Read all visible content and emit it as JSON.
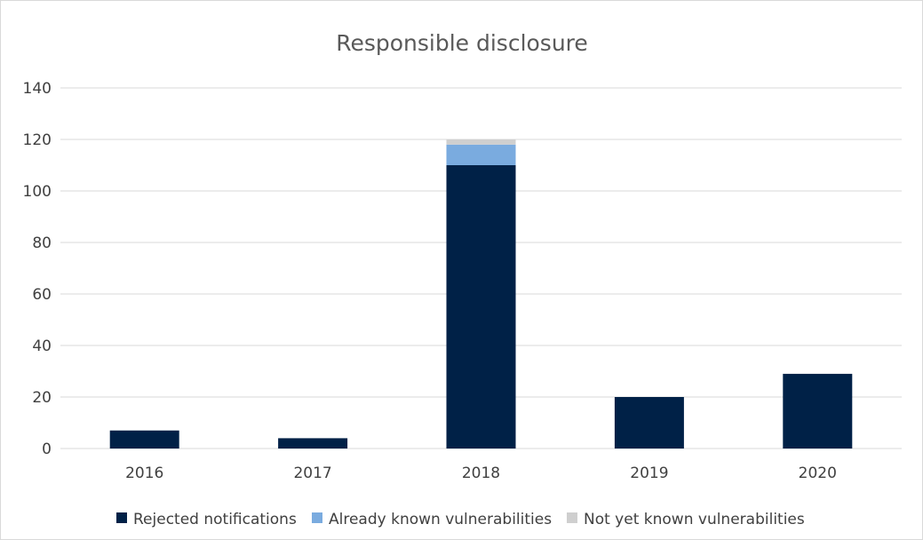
{
  "chart_data": {
    "type": "bar",
    "stacked": true,
    "title": "Responsible disclosure",
    "xlabel": "",
    "ylabel": "",
    "ylim": [
      0,
      140
    ],
    "yticks": [
      "0",
      "20",
      "40",
      "60",
      "80",
      "100",
      "120",
      "140"
    ],
    "categories": [
      "2016",
      "2017",
      "2018",
      "2019",
      "2020"
    ],
    "series": [
      {
        "name": "Rejected notifications",
        "color": "#002147",
        "values": [
          7,
          4,
          110,
          20,
          29
        ]
      },
      {
        "name": "Already known vulnerabilities",
        "color": "#7aabdf",
        "values": [
          0,
          0,
          8,
          0,
          0
        ]
      },
      {
        "name": "Not yet known vulnerabilities",
        "color": "#cfcfcf",
        "values": [
          0,
          0,
          2,
          0,
          0
        ]
      }
    ],
    "grid": true,
    "legend_position": "bottom"
  }
}
